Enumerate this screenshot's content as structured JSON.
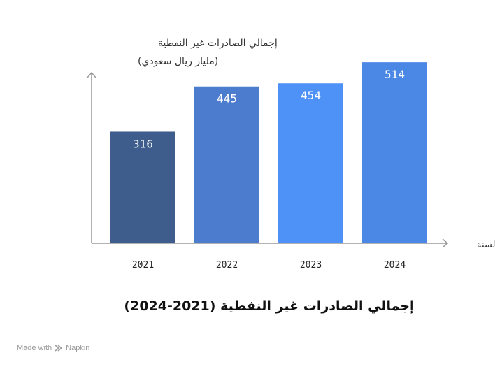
{
  "chart_data": {
    "type": "bar",
    "title": "إجمالي الصادرات غير النفطية (2021-2024)",
    "ylabel_line1": "إجمالي الصادرات غير النفطية",
    "ylabel_line2": "(مليار ريال سعودي)",
    "xlabel": "السنة",
    "categories": [
      "2021",
      "2022",
      "2023",
      "2024"
    ],
    "values": [
      316,
      445,
      454,
      514
    ],
    "value_labels": [
      "316",
      "445",
      "454",
      "514"
    ],
    "colors": [
      "#3f5d8c",
      "#4c7ccd",
      "#4f92f7",
      "#4b88e6"
    ],
    "ylim": [
      0,
      590
    ],
    "grid": false,
    "legend": "none"
  },
  "footer": {
    "made_with": "Made with",
    "brand": "Napkin",
    "brand_icon": "napkin-logo-icon"
  }
}
